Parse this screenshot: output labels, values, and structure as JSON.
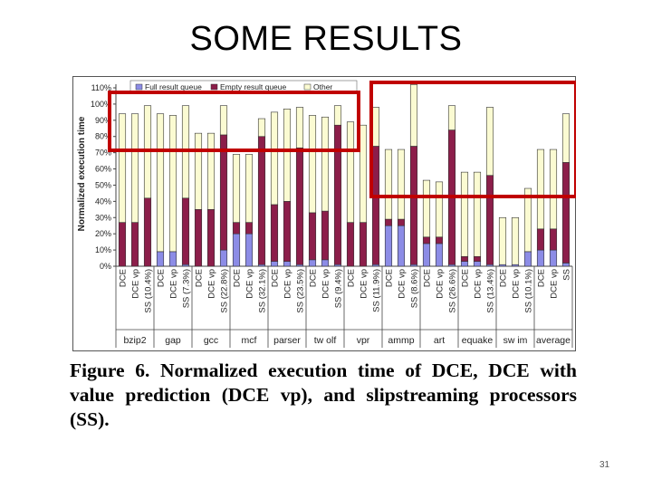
{
  "slide": {
    "title": "SOME RESULTS",
    "caption": "Figure 6. Normalized execution time of DCE, DCE with value prediction (DCE vp), and slipstreaming processors (SS).",
    "page_number": "31",
    "highlight_color": "#c00000"
  },
  "chart_data": {
    "type": "bar",
    "stacked": true,
    "ylabel": "Normalized execution time",
    "ylim": [
      0,
      110
    ],
    "y_ticks": [
      "0%",
      "10%",
      "20%",
      "30%",
      "40%",
      "50%",
      "60%",
      "70%",
      "80%",
      "90%",
      "100%",
      "110%"
    ],
    "legend_position": "top",
    "series": [
      {
        "name": "Full result queue",
        "color": "#8c8ce6"
      },
      {
        "name": "Empty result queue",
        "color": "#8c1e4a"
      },
      {
        "name": "Other",
        "color": "#fbfbd2"
      }
    ],
    "groups": [
      {
        "name": "bzip2",
        "bars": [
          {
            "label": "DCE",
            "values": [
              0,
              27,
              67
            ]
          },
          {
            "label": "DCE vp",
            "values": [
              0,
              27,
              67
            ]
          },
          {
            "label": "SS (10.4%)",
            "values": [
              0,
              42,
              57
            ]
          }
        ]
      },
      {
        "name": "gap",
        "bars": [
          {
            "label": "DCE",
            "values": [
              9,
              0,
              85
            ]
          },
          {
            "label": "DCE vp",
            "values": [
              9,
              0,
              84
            ]
          },
          {
            "label": "SS (7.3%)",
            "values": [
              1,
              41,
              57
            ]
          }
        ]
      },
      {
        "name": "gcc",
        "bars": [
          {
            "label": "DCE",
            "values": [
              0,
              35,
              47
            ]
          },
          {
            "label": "DCE vp",
            "values": [
              0,
              35,
              47
            ]
          },
          {
            "label": "SS (22.8%)",
            "values": [
              10,
              71,
              18
            ]
          }
        ]
      },
      {
        "name": "mcf",
        "bars": [
          {
            "label": "DCE",
            "values": [
              20,
              7,
              42
            ]
          },
          {
            "label": "DCE vp",
            "values": [
              20,
              7,
              42
            ]
          },
          {
            "label": "SS (32.1%)",
            "values": [
              1,
              79,
              11
            ]
          }
        ]
      },
      {
        "name": "parser",
        "bars": [
          {
            "label": "DCE",
            "values": [
              3,
              35,
              57
            ]
          },
          {
            "label": "DCE vp",
            "values": [
              3,
              37,
              57
            ]
          },
          {
            "label": "SS (23.5%)",
            "values": [
              1,
              72,
              25
            ]
          }
        ]
      },
      {
        "name": "tw olf",
        "bars": [
          {
            "label": "DCE",
            "values": [
              4,
              29,
              60
            ]
          },
          {
            "label": "DCE vp",
            "values": [
              4,
              30,
              58
            ]
          },
          {
            "label": "SS (9.4%)",
            "values": [
              1,
              86,
              12
            ]
          }
        ]
      },
      {
        "name": "vpr",
        "bars": [
          {
            "label": "DCE",
            "values": [
              0,
              27,
              62
            ]
          },
          {
            "label": "DCE vp",
            "values": [
              0,
              27,
              60
            ]
          },
          {
            "label": "SS (11.9%)",
            "values": [
              1,
              73,
              24
            ]
          }
        ]
      },
      {
        "name": "ammp",
        "bars": [
          {
            "label": "DCE",
            "values": [
              25,
              4,
              43
            ]
          },
          {
            "label": "DCE vp",
            "values": [
              25,
              4,
              43
            ]
          },
          {
            "label": "SS (8.6%)",
            "values": [
              1,
              73,
              38
            ]
          }
        ]
      },
      {
        "name": "art",
        "bars": [
          {
            "label": "DCE",
            "values": [
              14,
              4,
              35
            ]
          },
          {
            "label": "DCE vp",
            "values": [
              14,
              4,
              34
            ]
          },
          {
            "label": "SS (26.6%)",
            "values": [
              1,
              83,
              15
            ]
          }
        ]
      },
      {
        "name": "equake",
        "bars": [
          {
            "label": "DCE",
            "values": [
              3,
              3,
              52
            ]
          },
          {
            "label": "DCE vp",
            "values": [
              3,
              3,
              52
            ]
          },
          {
            "label": "SS (13.4%)",
            "values": [
              1,
              55,
              42
            ]
          }
        ]
      },
      {
        "name": "sw im",
        "bars": [
          {
            "label": "DCE",
            "values": [
              1,
              0,
              29
            ]
          },
          {
            "label": "DCE vp",
            "values": [
              1,
              0,
              29
            ]
          },
          {
            "label": "SS (10.1%)",
            "values": [
              9,
              0,
              39
            ]
          }
        ]
      },
      {
        "name": "average",
        "bars": [
          {
            "label": "DCE",
            "values": [
              10,
              13,
              49
            ]
          },
          {
            "label": "DCE vp",
            "values": [
              10,
              13,
              49
            ]
          },
          {
            "label": "SS",
            "values": [
              2,
              62,
              30
            ]
          }
        ]
      }
    ]
  }
}
